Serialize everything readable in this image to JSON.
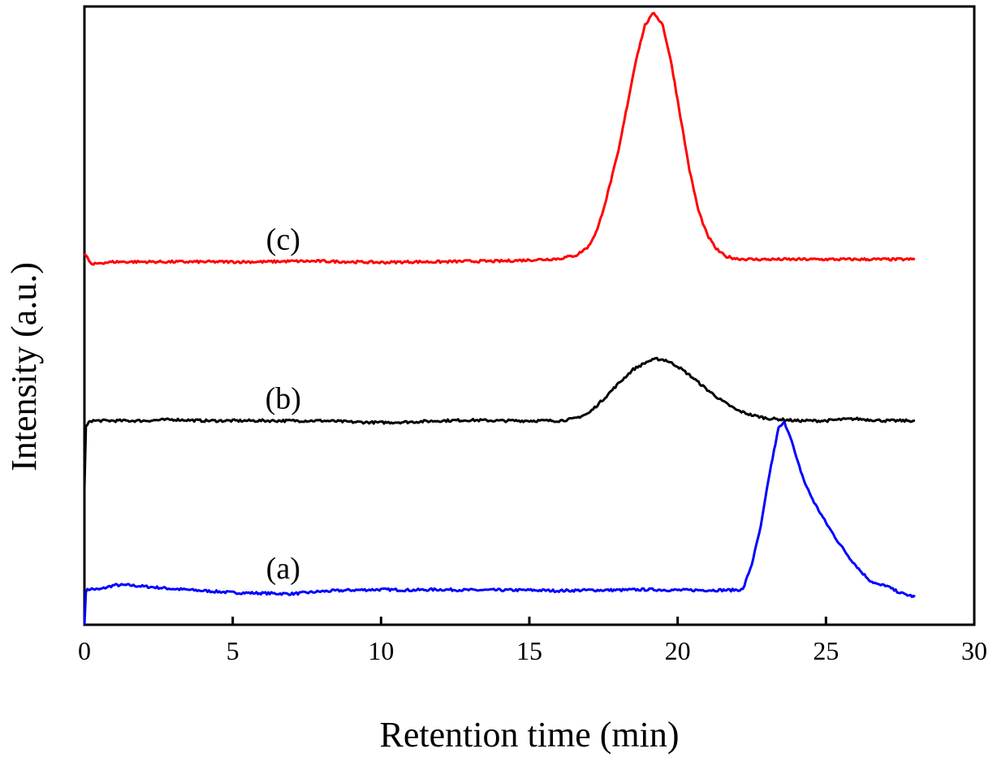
{
  "chart_data": {
    "type": "line",
    "title": "",
    "xlabel": "Retention time (min)",
    "ylabel": "Intensity (a.u.)",
    "xlim": [
      0,
      30
    ],
    "ylim": [
      0,
      1
    ],
    "x_ticks": [
      0,
      5,
      10,
      15,
      20,
      25,
      30
    ],
    "y_ticks_shown": false,
    "grid": false,
    "legend": "none",
    "series": [
      {
        "name": "(a)",
        "color": "#0000ff",
        "x": [
          0,
          0.05,
          0.2,
          0.5,
          1.0,
          1.5,
          2.0,
          3.0,
          4.0,
          5.0,
          6.0,
          7.0,
          8.0,
          9.0,
          10.0,
          11.0,
          12.0,
          13.0,
          14.0,
          15.0,
          16.0,
          17.0,
          18.0,
          19.0,
          20.0,
          21.0,
          21.8,
          22.2,
          22.5,
          22.8,
          23.1,
          23.4,
          23.6,
          23.8,
          24.0,
          24.3,
          24.6,
          25.0,
          25.4,
          25.8,
          26.2,
          26.5,
          26.8,
          27.0,
          27.3,
          27.6,
          28.0
        ],
        "y": [
          0.0,
          0.055,
          0.058,
          0.057,
          0.064,
          0.064,
          0.062,
          0.058,
          0.055,
          0.052,
          0.051,
          0.05,
          0.054,
          0.056,
          0.057,
          0.056,
          0.057,
          0.056,
          0.056,
          0.056,
          0.055,
          0.056,
          0.056,
          0.057,
          0.056,
          0.056,
          0.056,
          0.057,
          0.098,
          0.158,
          0.245,
          0.318,
          0.327,
          0.305,
          0.27,
          0.228,
          0.198,
          0.165,
          0.135,
          0.108,
          0.085,
          0.071,
          0.064,
          0.064,
          0.056,
          0.05,
          0.045
        ]
      },
      {
        "name": "(b)",
        "color": "#000000",
        "x": [
          0,
          0.05,
          0.2,
          1.0,
          2.0,
          3.0,
          4.0,
          5.0,
          6.0,
          7.0,
          8.0,
          9.0,
          10.0,
          11.0,
          12.0,
          13.0,
          14.0,
          15.0,
          16.0,
          16.5,
          17.0,
          17.5,
          18.0,
          18.5,
          19.0,
          19.3,
          19.6,
          20.0,
          20.5,
          21.0,
          21.5,
          22.0,
          22.5,
          23.0,
          24.0,
          25.0,
          25.5,
          26.0,
          27.0,
          28.0
        ],
        "y": [
          0.22,
          0.32,
          0.33,
          0.33,
          0.33,
          0.332,
          0.33,
          0.33,
          0.33,
          0.33,
          0.33,
          0.328,
          0.327,
          0.328,
          0.33,
          0.331,
          0.33,
          0.33,
          0.33,
          0.333,
          0.342,
          0.365,
          0.39,
          0.413,
          0.426,
          0.43,
          0.428,
          0.418,
          0.4,
          0.38,
          0.362,
          0.347,
          0.339,
          0.334,
          0.33,
          0.33,
          0.332,
          0.333,
          0.33,
          0.33
        ]
      },
      {
        "name": "(c)",
        "color": "#ff0000",
        "x": [
          0,
          0.1,
          0.25,
          0.5,
          1.0,
          2.0,
          3.0,
          4.0,
          5.0,
          6.0,
          7.0,
          8.0,
          9.0,
          10.0,
          11.0,
          12.0,
          13.0,
          14.0,
          15.0,
          16.0,
          16.6,
          17.0,
          17.3,
          17.6,
          18.0,
          18.3,
          18.6,
          18.9,
          19.2,
          19.5,
          19.8,
          20.1,
          20.4,
          20.7,
          21.0,
          21.3,
          21.6,
          22.0,
          22.5,
          23.0,
          24.0,
          25.0,
          26.0,
          27.0,
          28.0
        ],
        "y": [
          0.6,
          0.593,
          0.582,
          0.585,
          0.587,
          0.587,
          0.587,
          0.587,
          0.587,
          0.587,
          0.588,
          0.588,
          0.587,
          0.586,
          0.587,
          0.587,
          0.588,
          0.588,
          0.59,
          0.592,
          0.598,
          0.612,
          0.64,
          0.69,
          0.765,
          0.84,
          0.915,
          0.97,
          0.99,
          0.97,
          0.905,
          0.82,
          0.735,
          0.67,
          0.63,
          0.608,
          0.596,
          0.592,
          0.591,
          0.591,
          0.591,
          0.591,
          0.591,
          0.591,
          0.591
        ]
      }
    ],
    "curve_labels": [
      {
        "text": "(a)",
        "x": 6.7,
        "y": 0.075
      },
      {
        "text": "(b)",
        "x": 6.7,
        "y": 0.35
      },
      {
        "text": "(c)",
        "x": 6.7,
        "y": 0.607
      }
    ]
  }
}
